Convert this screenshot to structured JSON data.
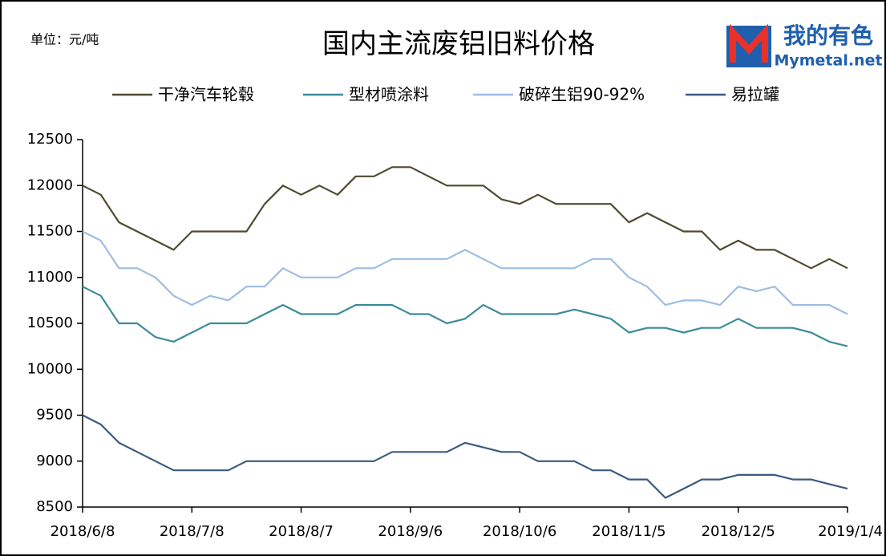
{
  "chart_data": {
    "type": "line",
    "title": "国内主流废铝旧料价格",
    "unit_note": "单位：元/吨",
    "logo": {
      "text": "我的有色",
      "subtext": "Mymetal.net"
    },
    "x": [
      "2018/6/8",
      "2018/6/13",
      "2018/6/18",
      "2018/6/23",
      "2018/6/28",
      "2018/7/3",
      "2018/7/8",
      "2018/7/13",
      "2018/7/18",
      "2018/7/23",
      "2018/7/28",
      "2018/8/2",
      "2018/8/7",
      "2018/8/12",
      "2018/8/17",
      "2018/8/22",
      "2018/8/27",
      "2018/9/1",
      "2018/9/6",
      "2018/9/11",
      "2018/9/16",
      "2018/9/21",
      "2018/9/26",
      "2018/10/1",
      "2018/10/6",
      "2018/10/11",
      "2018/10/16",
      "2018/10/21",
      "2018/10/26",
      "2018/10/31",
      "2018/11/5",
      "2018/11/10",
      "2018/11/15",
      "2018/11/20",
      "2018/11/25",
      "2018/11/30",
      "2018/12/5",
      "2018/12/10",
      "2018/12/15",
      "2018/12/20",
      "2018/12/25",
      "2018/12/30",
      "2019/1/4"
    ],
    "series": [
      {
        "name": "干净汽车轮毂",
        "color": "#4f4b30",
        "values": [
          12000,
          11900,
          11600,
          11500,
          11400,
          11300,
          11500,
          11500,
          11500,
          11500,
          11800,
          12000,
          11900,
          12000,
          11900,
          12100,
          12100,
          12200,
          12200,
          12100,
          12000,
          12000,
          12000,
          11850,
          11800,
          11900,
          11800,
          11800,
          11800,
          11800,
          11600,
          11700,
          11600,
          11500,
          11500,
          11300,
          11400,
          11300,
          11300,
          11200,
          11100,
          11200,
          11100
        ]
      },
      {
        "name": "型材喷涂料",
        "color": "#3c8c9b",
        "values": [
          10900,
          10800,
          10500,
          10500,
          10350,
          10300,
          10400,
          10500,
          10500,
          10500,
          10600,
          10700,
          10600,
          10600,
          10600,
          10700,
          10700,
          10700,
          10600,
          10600,
          10500,
          10550,
          10700,
          10600,
          10600,
          10600,
          10600,
          10650,
          10600,
          10550,
          10400,
          10450,
          10450,
          10400,
          10450,
          10450,
          10550,
          10450,
          10450,
          10450,
          10400,
          10300,
          10250
        ]
      },
      {
        "name": "破碎生铝90-92%",
        "color": "#9dbde3",
        "values": [
          11500,
          11400,
          11100,
          11100,
          11000,
          10800,
          10700,
          10800,
          10750,
          10900,
          10900,
          11100,
          11000,
          11000,
          11000,
          11100,
          11100,
          11200,
          11200,
          11200,
          11200,
          11300,
          11200,
          11100,
          11100,
          11100,
          11100,
          11100,
          11200,
          11200,
          11000,
          10900,
          10700,
          10750,
          10750,
          10700,
          10900,
          10850,
          10900,
          10700,
          10700,
          10700,
          10600
        ]
      },
      {
        "name": "易拉罐",
        "color": "#3b5a80",
        "values": [
          9500,
          9400,
          9200,
          9100,
          9000,
          8900,
          8900,
          8900,
          8900,
          9000,
          9000,
          9000,
          9000,
          9000,
          9000,
          9000,
          9000,
          9100,
          9100,
          9100,
          9100,
          9200,
          9150,
          9100,
          9100,
          9000,
          9000,
          9000,
          8900,
          8900,
          8800,
          8800,
          8600,
          8700,
          8800,
          8800,
          8850,
          8850,
          8850,
          8800,
          8800,
          8750,
          8700
        ]
      }
    ],
    "xlim": [
      "2018/6/8",
      "2019/1/4"
    ],
    "xticks": [
      "2018/6/8",
      "2018/7/8",
      "2018/8/7",
      "2018/9/6",
      "2018/10/6",
      "2018/11/5",
      "2018/12/5",
      "2019/1/4"
    ],
    "ylim": [
      8500,
      12500
    ],
    "yticks": [
      8500,
      9000,
      9500,
      10000,
      10500,
      11000,
      11500,
      12000,
      12500
    ],
    "grid": false,
    "legend": "top"
  }
}
